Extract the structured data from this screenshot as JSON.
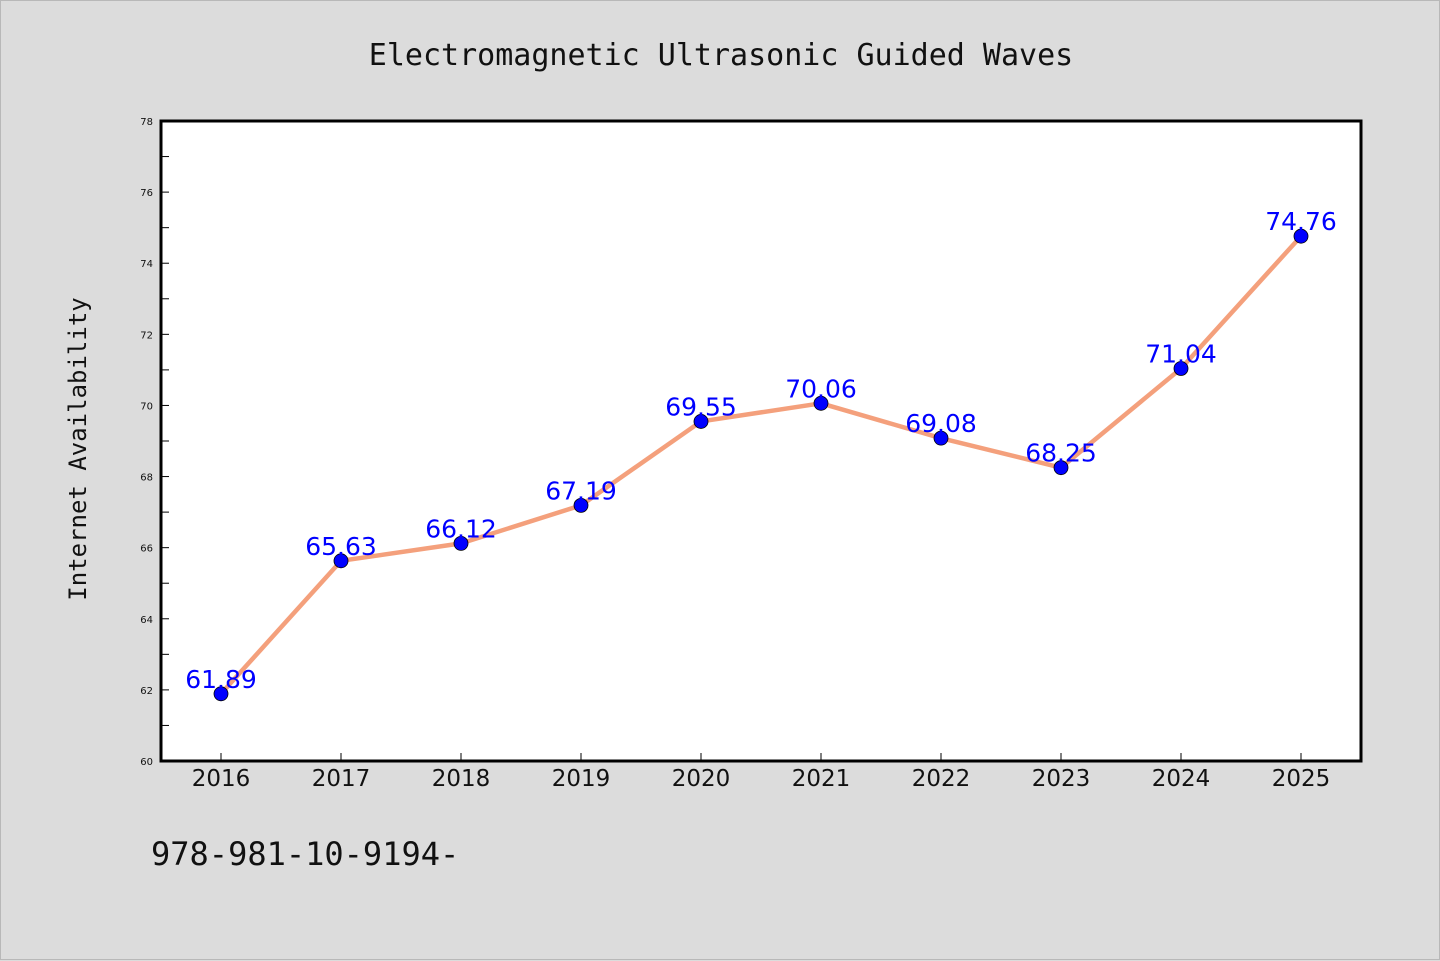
{
  "chart_data": {
    "type": "line",
    "title": "Electromagnetic Ultrasonic Guided Waves",
    "xlabel": "",
    "ylabel": "Internet Availability",
    "categories": [
      "2016",
      "2017",
      "2018",
      "2019",
      "2020",
      "2021",
      "2022",
      "2023",
      "2024",
      "2025"
    ],
    "series": [
      {
        "values": [
          61.89,
          65.63,
          66.12,
          67.19,
          69.55,
          70.06,
          69.08,
          68.25,
          71.04,
          74.76
        ],
        "data_labels": [
          "61.89",
          "65.63",
          "66.12",
          "67.19",
          "69.55",
          "70.06",
          "69.08",
          "68.25",
          "71.04",
          "74.76"
        ],
        "line_color": "#f4a07c",
        "marker_color": "#0000ff"
      }
    ],
    "ylim": [
      60,
      78
    ],
    "yticks": [
      "60",
      "62",
      "64",
      "66",
      "68",
      "70",
      "72",
      "74",
      "76",
      "78"
    ],
    "grid": false,
    "legend": "none"
  },
  "footer_text": "978-981-10-9194-",
  "colors": {
    "background": "#dcdcdc",
    "plot_background": "#ffffff",
    "axis": "#000000",
    "label_text": "#0000ff"
  }
}
